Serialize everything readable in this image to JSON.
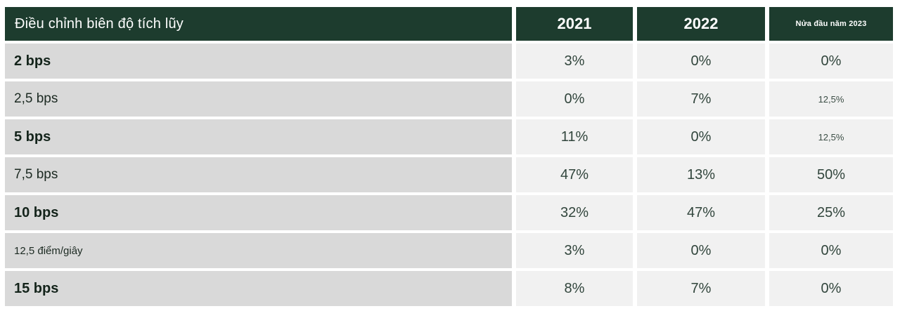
{
  "table": {
    "header": {
      "label": "Điều chỉnh biên độ tích lũy",
      "col_2021": "2021",
      "col_2022": "2022",
      "col_2023": "Nửa đầu năm 2023"
    },
    "rows": [
      {
        "label": "2 bps",
        "values": [
          "3%",
          "0%",
          "0%"
        ]
      },
      {
        "label": "2,5 bps",
        "values": [
          "0%",
          "7%",
          "12,5%"
        ]
      },
      {
        "label": "5 bps",
        "values": [
          "11%",
          "0%",
          "12,5%"
        ]
      },
      {
        "label": "7,5 bps",
        "values": [
          "47%",
          "13%",
          "50%"
        ]
      },
      {
        "label": "10 bps",
        "values": [
          "32%",
          "47%",
          "25%"
        ]
      },
      {
        "label": "12,5 điểm/giây",
        "values": [
          "3%",
          "0%",
          "0%"
        ]
      },
      {
        "label": "15 bps",
        "values": [
          "8%",
          "7%",
          "0%"
        ]
      }
    ]
  },
  "colors": {
    "header_bg": "#1d3c2e",
    "header_text": "#ffffff",
    "label_cell_bg": "#d9d9d9",
    "value_cell_bg": "#f1f1f1",
    "text_dark_green": "#31453c",
    "page_bg": "#ffffff"
  },
  "chart_data": {
    "type": "table",
    "title": "Điều chỉnh biên độ tích lũy",
    "columns": [
      "Điều chỉnh biên độ tích lũy",
      "2021",
      "2022",
      "Nửa đầu năm 2023"
    ],
    "rows": [
      [
        "2 bps",
        "3%",
        "0%",
        "0%"
      ],
      [
        "2,5 bps",
        "0%",
        "7%",
        "12,5%"
      ],
      [
        "5 bps",
        "11%",
        "0%",
        "12,5%"
      ],
      [
        "7,5 bps",
        "47%",
        "13%",
        "50%"
      ],
      [
        "10 bps",
        "32%",
        "47%",
        "25%"
      ],
      [
        "12,5 điểm/giây",
        "3%",
        "0%",
        "0%"
      ],
      [
        "15 bps",
        "8%",
        "7%",
        "0%"
      ]
    ],
    "layout_hints": {
      "header_row": true,
      "bold_label_rows": [
        0,
        2,
        4,
        6
      ],
      "small_label_rows": [
        5
      ],
      "small_value_cells": [
        [
          1,
          2
        ],
        [
          2,
          2
        ]
      ]
    }
  }
}
